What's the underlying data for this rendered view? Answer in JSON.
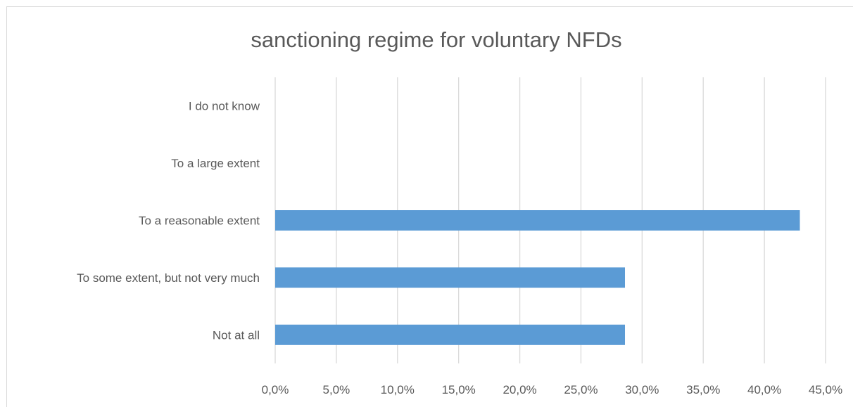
{
  "chart_data": {
    "type": "bar",
    "orientation": "horizontal",
    "title": "sanctioning regime for voluntary NFDs",
    "xlabel": "",
    "ylabel": "",
    "categories": [
      "I do not know",
      "To a large extent",
      "To a reasonable extent",
      "To some extent, but not very much",
      "Not at all"
    ],
    "values": [
      0.0,
      0.0,
      42.9,
      28.6,
      28.6
    ],
    "xlim": [
      0,
      45
    ],
    "x_ticks": [
      "0,0%",
      "5,0%",
      "10,0%",
      "15,0%",
      "20,0%",
      "25,0%",
      "30,0%",
      "35,0%",
      "40,0%",
      "45,0%"
    ],
    "grid": true,
    "legend": "none",
    "bar_color": "#5b9bd5",
    "grid_color": "#d9d9d9",
    "text_color": "#595959"
  }
}
